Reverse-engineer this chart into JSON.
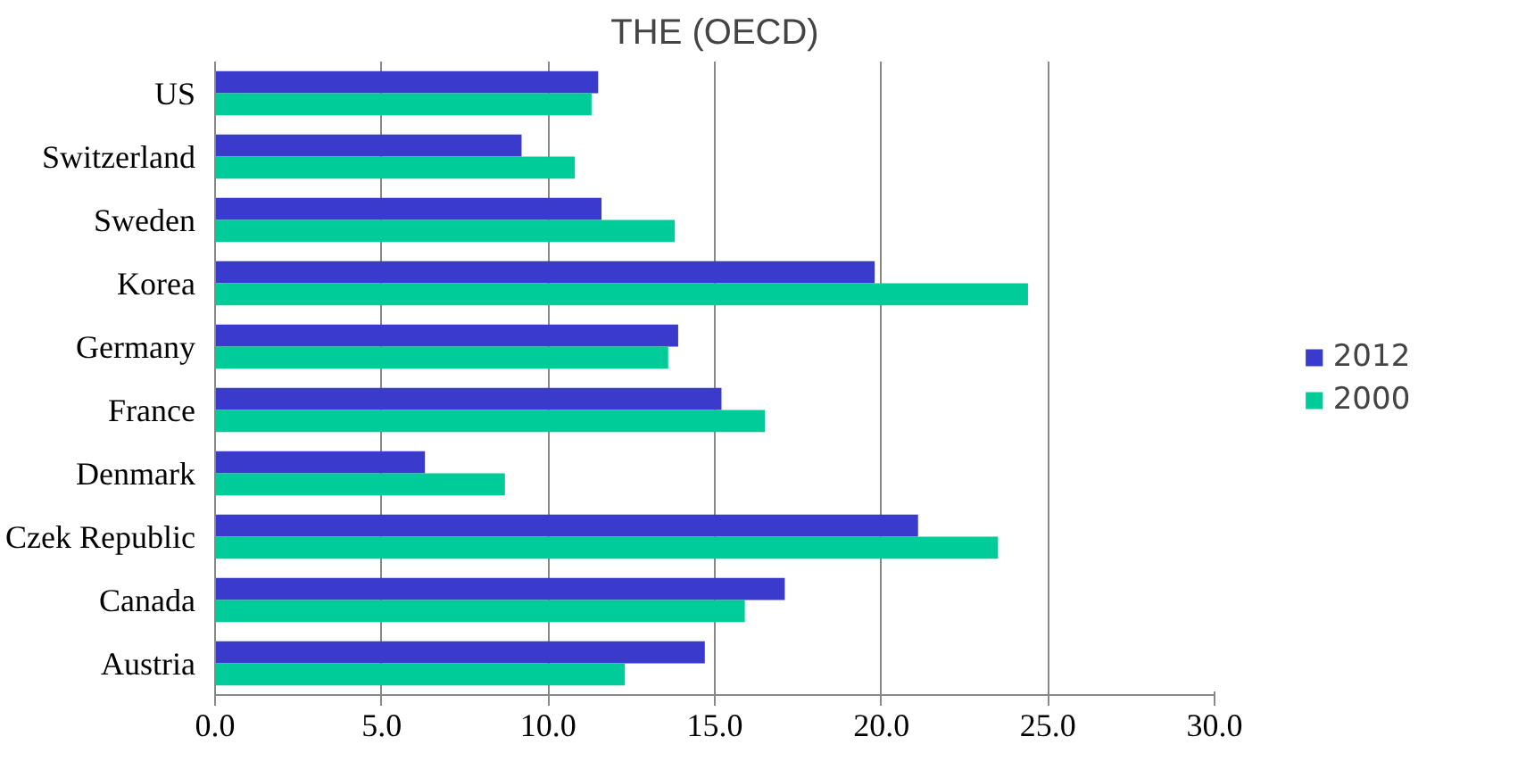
{
  "chart_data": {
    "type": "bar",
    "orientation": "horizontal",
    "title": "THE (OECD)",
    "categories": [
      "US",
      "Switzerland",
      "Sweden",
      "Korea",
      "Germany",
      "France",
      "Denmark",
      "Czek Republic",
      "Canada",
      "Austria"
    ],
    "series": [
      {
        "name": "2012",
        "color": "#3a3acc",
        "values": [
          11.5,
          9.2,
          11.6,
          19.8,
          13.9,
          15.2,
          6.3,
          21.1,
          17.1,
          14.7
        ]
      },
      {
        "name": "2000",
        "color": "#00cc99",
        "values": [
          11.3,
          10.8,
          13.8,
          24.4,
          13.6,
          16.5,
          8.7,
          23.5,
          15.9,
          12.3
        ]
      }
    ],
    "xlim": [
      0,
      30
    ],
    "xticks": [
      {
        "value": 0,
        "label": "0.0"
      },
      {
        "value": 5,
        "label": "5.0"
      },
      {
        "value": 10,
        "label": "10.0"
      },
      {
        "value": 15,
        "label": "15.0"
      },
      {
        "value": 20,
        "label": "20.0"
      },
      {
        "value": 25,
        "label": "25.0"
      },
      {
        "value": 30,
        "label": "30.0"
      }
    ],
    "grid": "x",
    "legend": "right"
  }
}
